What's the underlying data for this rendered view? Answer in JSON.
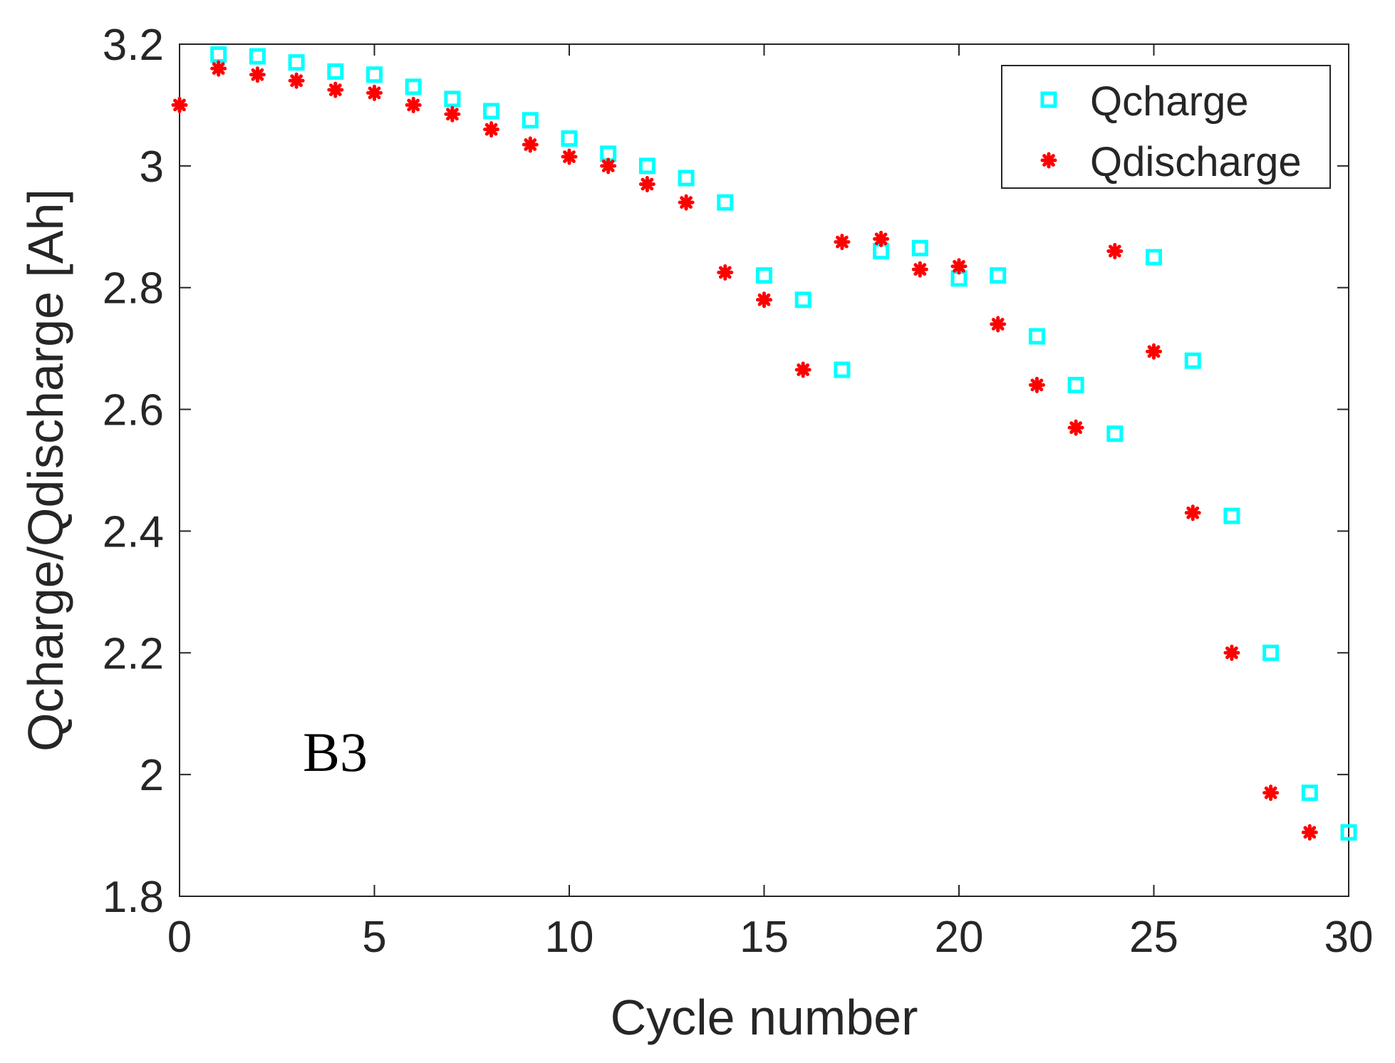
{
  "chart_data": {
    "type": "scatter",
    "title": "",
    "xlabel": "Cycle number",
    "ylabel": "Qcharge/Qdischarge [Ah]",
    "xlim": [
      0,
      30
    ],
    "ylim": [
      1.8,
      3.2
    ],
    "xticks": [
      0,
      5,
      10,
      15,
      20,
      25,
      30
    ],
    "yticks": [
      1.8,
      2.0,
      2.2,
      2.4,
      2.6,
      2.8,
      3.0,
      3.2
    ],
    "xtick_labels": [
      "0",
      "5",
      "10",
      "15",
      "20",
      "25",
      "30"
    ],
    "ytick_labels": [
      "1.8",
      "2",
      "2.2",
      "2.4",
      "2.6",
      "2.8",
      "3",
      "3.2"
    ],
    "grid": false,
    "legend_position": "top-right",
    "annotation": "B3",
    "series": [
      {
        "name": "Qcharge",
        "marker": "square",
        "color": "#00FFFF",
        "x": [
          1,
          2,
          3,
          4,
          5,
          6,
          7,
          8,
          9,
          10,
          11,
          12,
          13,
          14,
          15,
          16,
          17,
          18,
          19,
          20,
          21,
          22,
          23,
          24,
          25,
          26,
          27,
          28,
          29,
          30
        ],
        "y": [
          3.183,
          3.18,
          3.17,
          3.155,
          3.15,
          3.13,
          3.11,
          3.09,
          3.075,
          3.045,
          3.02,
          3.0,
          2.98,
          2.94,
          2.82,
          2.78,
          2.665,
          2.86,
          2.865,
          2.815,
          2.82,
          2.72,
          2.64,
          2.56,
          2.85,
          2.68,
          2.425,
          2.2,
          1.97,
          1.905
        ]
      },
      {
        "name": "Qdischarge",
        "marker": "asterisk",
        "color": "#FF0000",
        "x": [
          0,
          1,
          2,
          3,
          4,
          5,
          6,
          7,
          8,
          9,
          10,
          11,
          12,
          13,
          14,
          15,
          16,
          17,
          18,
          19,
          20,
          21,
          22,
          23,
          24,
          25,
          26,
          27,
          28,
          29
        ],
        "y": [
          3.1,
          3.16,
          3.15,
          3.14,
          3.125,
          3.12,
          3.1,
          3.085,
          3.06,
          3.035,
          3.015,
          3.0,
          2.97,
          2.94,
          2.825,
          2.78,
          2.665,
          2.875,
          2.88,
          2.83,
          2.835,
          2.74,
          2.64,
          2.57,
          2.86,
          2.695,
          2.43,
          2.2,
          1.97,
          1.905
        ]
      }
    ]
  }
}
